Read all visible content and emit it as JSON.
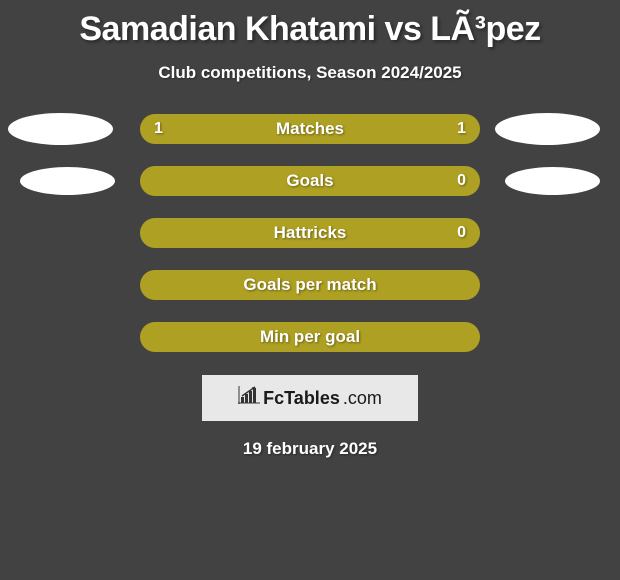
{
  "title": "Samadian Khatami vs LÃ³pez",
  "subtitle": "Club competitions, Season 2024/2025",
  "colors": {
    "background": "#424242",
    "bar": "#aea022",
    "ellipse": "#ffffff",
    "text": "#ffffff",
    "logo_bg": "#e8e8e8",
    "logo_text": "#1a1a1a"
  },
  "stats": [
    {
      "label": "Matches",
      "left_value": "1",
      "right_value": "1",
      "show_left_ellipse": true,
      "show_right_ellipse": true,
      "ellipse_class": ""
    },
    {
      "label": "Goals",
      "left_value": "",
      "right_value": "0",
      "show_left_ellipse": true,
      "show_right_ellipse": true,
      "ellipse_class": "ellipse2"
    },
    {
      "label": "Hattricks",
      "left_value": "",
      "right_value": "0",
      "show_left_ellipse": false,
      "show_right_ellipse": false,
      "ellipse_class": ""
    },
    {
      "label": "Goals per match",
      "left_value": "",
      "right_value": "",
      "show_left_ellipse": false,
      "show_right_ellipse": false,
      "ellipse_class": ""
    },
    {
      "label": "Min per goal",
      "left_value": "",
      "right_value": "",
      "show_left_ellipse": false,
      "show_right_ellipse": false,
      "ellipse_class": ""
    }
  ],
  "logo": {
    "name": "FcTables",
    "suffix": ".com"
  },
  "date": "19 february 2025"
}
